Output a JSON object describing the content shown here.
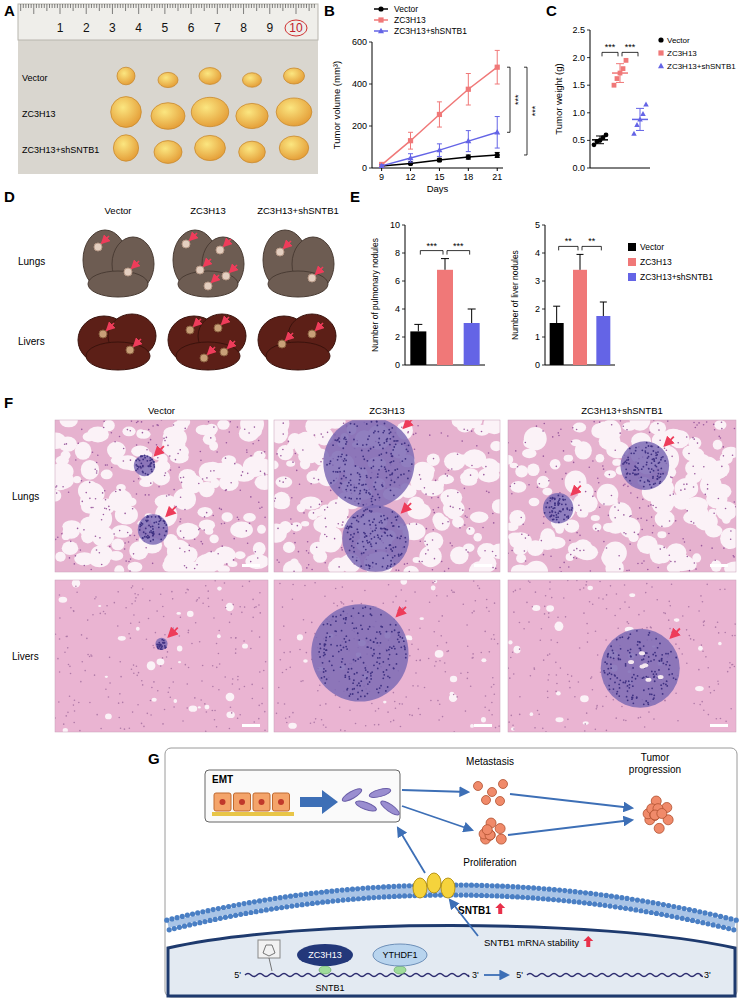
{
  "panel_labels": [
    "A",
    "B",
    "C",
    "D",
    "E",
    "F",
    "G"
  ],
  "photo_a": {
    "ruler": [
      1,
      2,
      3,
      4,
      5,
      6,
      7,
      8,
      9,
      10
    ],
    "rows": [
      "Vector",
      "ZC3H13",
      "ZC3H13+shSNTB1"
    ]
  },
  "chart_data": [
    {
      "type": "line",
      "x": [
        9,
        12,
        15,
        18,
        21
      ],
      "xlim": [
        8,
        21.6
      ],
      "xticks": [
        9,
        12,
        15,
        18,
        21
      ],
      "ylim": [
        0,
        600
      ],
      "yticks": [
        0,
        200,
        400,
        600
      ],
      "x_label": "Days",
      "y_label": "Tumor volume (mm³)",
      "legend": "top-left",
      "series": [
        {
          "name": "Vector",
          "color": "#000000",
          "marker": "circle",
          "values": [
            10,
            22,
            38,
            52,
            62
          ],
          "errors": [
            4,
            6,
            8,
            10,
            12
          ]
        },
        {
          "name": "ZC3H13",
          "color": "#f07878",
          "marker": "square",
          "values": [
            15,
            130,
            255,
            375,
            480
          ],
          "errors": [
            12,
            40,
            60,
            75,
            80
          ]
        },
        {
          "name": "ZC3H13+shSNTB1",
          "color": "#6464e6",
          "marker": "triangle",
          "values": [
            10,
            48,
            85,
            128,
            170
          ],
          "errors": [
            6,
            20,
            30,
            50,
            75
          ]
        }
      ],
      "significance": [
        {
          "between": [
            1,
            2
          ],
          "label": "***"
        },
        {
          "between": [
            1,
            0
          ],
          "label": "***"
        }
      ]
    },
    {
      "type": "dot",
      "ylim": [
        0,
        2.5
      ],
      "yticks": [
        {
          "value": 0,
          "label": "0.0"
        },
        0.5,
        {
          "value": 1,
          "label": "1.0"
        },
        1.5,
        {
          "value": 2,
          "label": "2.0"
        },
        2.5
      ],
      "y_label": "Tumor weight (g)",
      "tick_labels": "y",
      "legend": "right",
      "series": [
        {
          "name": "Vector",
          "color": "#000000",
          "marker": "circle",
          "values": [
            0.42,
            0.48,
            0.5,
            0.55,
            0.6
          ],
          "mean": 0.51,
          "sd": 0.07
        },
        {
          "name": "ZC3H13",
          "color": "#f07878",
          "marker": "square",
          "values": [
            1.5,
            1.62,
            1.72,
            1.8,
            1.95
          ],
          "mean": 1.72,
          "sd": 0.17
        },
        {
          "name": "ZC3H13+shSNTB1",
          "color": "#6464e6",
          "marker": "triangle",
          "values": [
            0.62,
            0.78,
            0.88,
            0.98,
            1.15
          ],
          "mean": 0.88,
          "sd": 0.2
        }
      ],
      "significance": [
        {
          "between": [
            0,
            1
          ],
          "label": "***"
        },
        {
          "between": [
            1,
            2
          ],
          "label": "***"
        }
      ]
    },
    {
      "type": "bar",
      "categories": [
        "Vector",
        "ZC3H13",
        "ZC3H13+shSNTB1"
      ],
      "colors": [
        "#000000",
        "#f07878",
        "#6464e6"
      ],
      "legend": "right",
      "tick_labels": "y",
      "subplots": [
        {
          "y_label": "Number of pulmonary nodules",
          "ylim": [
            0,
            10
          ],
          "yticks": [
            0,
            2,
            4,
            6,
            8,
            10
          ],
          "values": [
            2.4,
            6.8,
            3.0
          ],
          "errors": [
            0.5,
            0.8,
            1.0
          ],
          "significance": [
            {
              "between": [
                0,
                1
              ],
              "label": "***"
            },
            {
              "between": [
                1,
                2
              ],
              "label": "***"
            }
          ]
        },
        {
          "y_label": "Number of liver nodules",
          "ylim": [
            0,
            5
          ],
          "yticks": [
            0,
            1,
            2,
            3,
            4,
            5
          ],
          "values": [
            1.5,
            3.4,
            1.75
          ],
          "errors": [
            0.6,
            0.55,
            0.5
          ],
          "significance": [
            {
              "between": [
                0,
                1
              ],
              "label": "**"
            },
            {
              "between": [
                1,
                2
              ],
              "label": "**"
            }
          ]
        }
      ]
    }
  ],
  "photo_d": {
    "columns": [
      "Vector",
      "ZC3H13",
      "ZC3H13+shSNTB1"
    ],
    "rows": [
      "Lungs",
      "Livers"
    ]
  },
  "histology_f": {
    "columns": [
      "Vector",
      "ZC3H13",
      "ZC3H13+shSNTB1"
    ],
    "rows": [
      "Lungs",
      "Livers"
    ]
  },
  "diagram_g": {
    "emt": "EMT",
    "metastasis": "Metastasis",
    "proliferation": "Proliferation",
    "progression": "Tumor progression",
    "protein": "SNTB1",
    "writer": "ZC3H13",
    "reader": "YTHDF1",
    "stability": "SNTB1 mRNA stability",
    "mrna": {
      "label": "SNTB1",
      "strands": [
        {
          "five": "5'",
          "three": "3'"
        },
        {
          "five": "5'",
          "three": "3'"
        }
      ]
    }
  }
}
